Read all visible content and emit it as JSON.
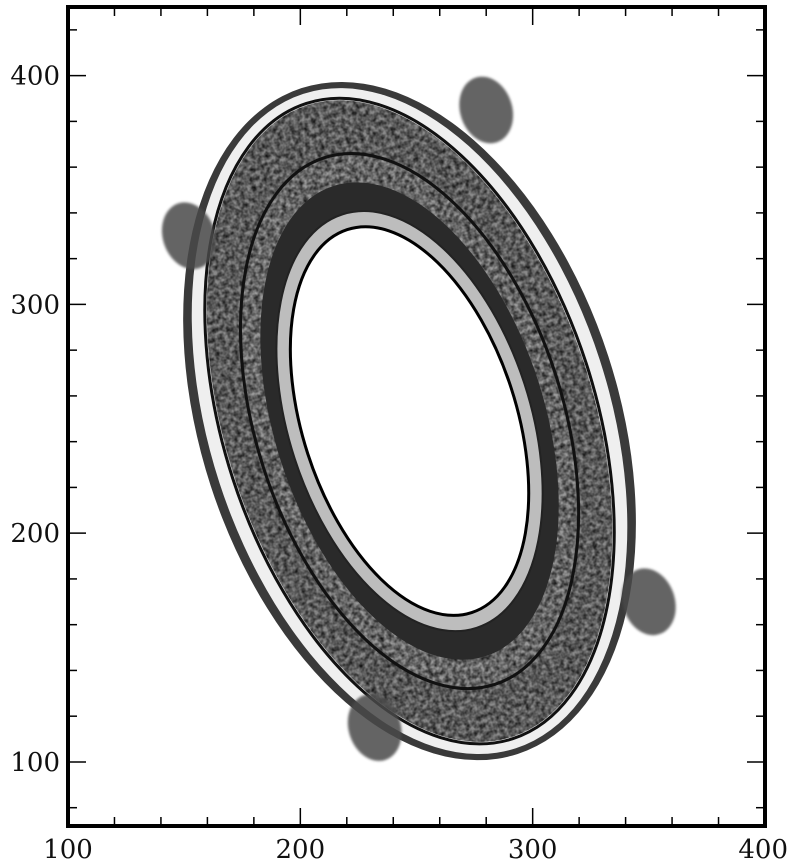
{
  "chart_data": {
    "type": "image",
    "title": "",
    "xlabel": "",
    "ylabel": "",
    "xlim": [
      100,
      400
    ],
    "ylim": [
      72,
      430
    ],
    "x_ticks": [
      100,
      200,
      300,
      400
    ],
    "x_tick_labels": [
      "100",
      "200",
      "300",
      "400"
    ],
    "y_ticks": [
      100,
      200,
      300,
      400
    ],
    "y_tick_labels": [
      "100",
      "200",
      "300",
      "400"
    ],
    "x_minor_step": 20,
    "y_minor_step": 20,
    "grid": false,
    "colormap": "grayscale",
    "image_content": {
      "description_kind": "nested tilted elliptical rings",
      "center": [
        247,
        249
      ],
      "rings": [
        {
          "name": "outer-bright-ring",
          "rx": 80,
          "ry": 146,
          "tilt_deg": -18
        },
        {
          "name": "outer-shock-ring",
          "rx": 90,
          "ry": 153,
          "tilt_deg": -18
        },
        {
          "name": "middle-textured-ring",
          "rx": 66,
          "ry": 121,
          "tilt_deg": -18
        },
        {
          "name": "middle-dark-ring",
          "rx": 58,
          "ry": 108,
          "tilt_deg": -18
        },
        {
          "name": "inner-ring",
          "rx": 52,
          "ry": 95,
          "tilt_deg": -18
        }
      ],
      "hole": {
        "rx": 46,
        "ry": 88,
        "tilt_deg": -18
      },
      "lobes": [
        {
          "name": "upper-left-lobe",
          "x": 152,
          "y": 330
        },
        {
          "name": "upper-right-lobe",
          "x": 280,
          "y": 385
        },
        {
          "name": "lower-right-lobe",
          "x": 350,
          "y": 170
        },
        {
          "name": "lower-left-lobe",
          "x": 232,
          "y": 115
        }
      ]
    }
  }
}
